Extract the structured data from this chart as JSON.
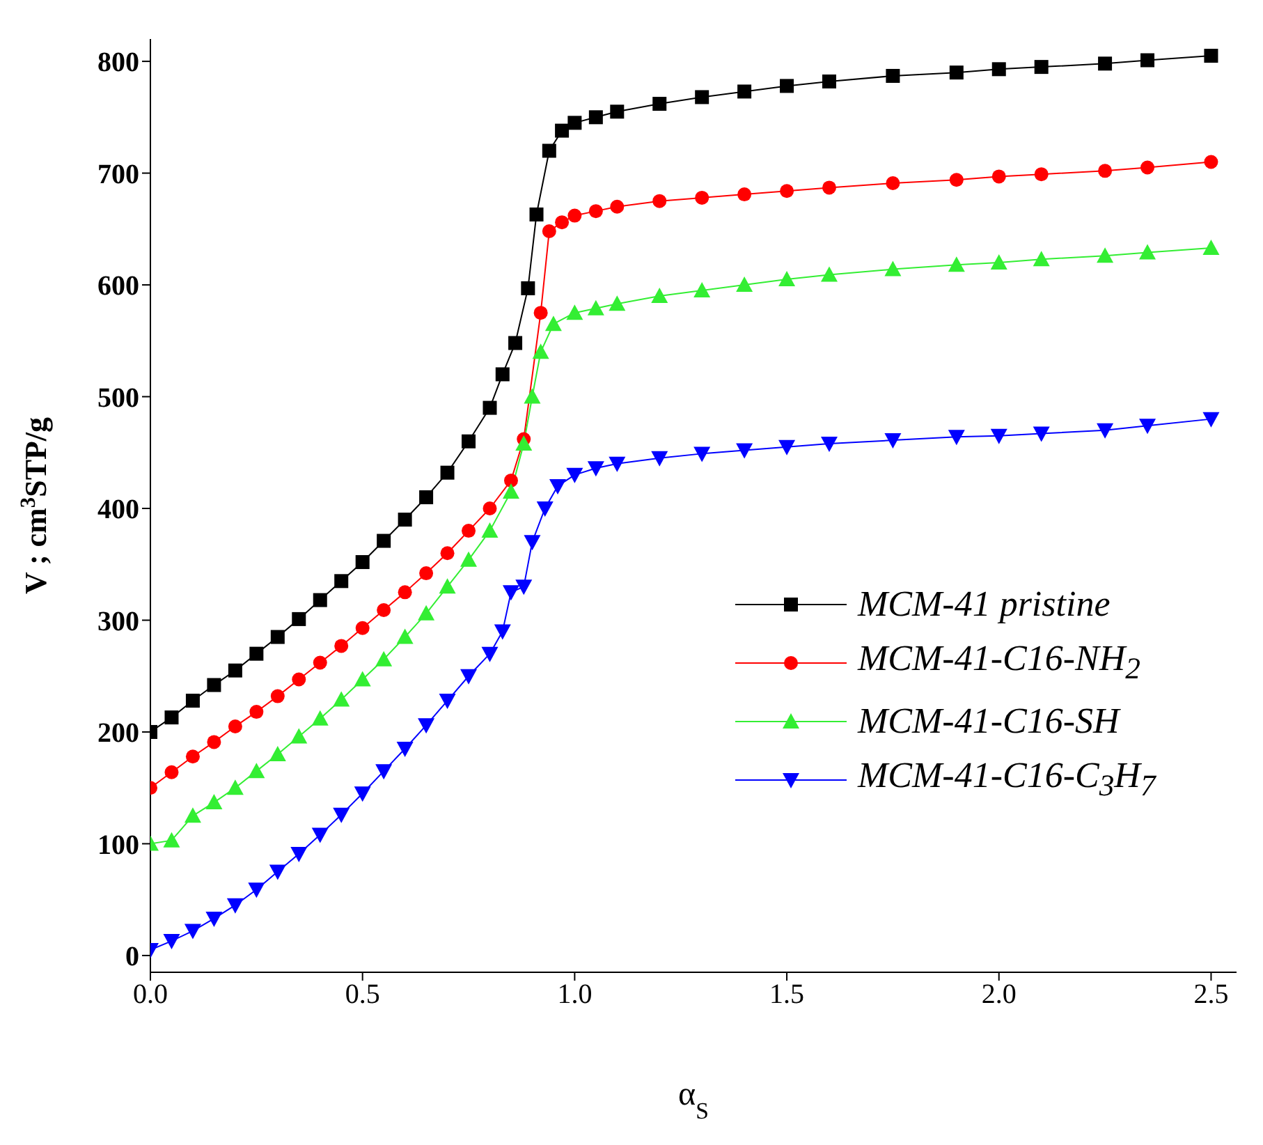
{
  "chart_data": {
    "type": "line",
    "xlabel": "α$_{S}$",
    "ylabel": "V ; cm$^{3}$STP/g",
    "xlim": [
      0,
      2.56
    ],
    "ylim": [
      -15,
      820
    ],
    "xticks": [
      {
        "value": 0,
        "label": "0.0"
      },
      {
        "value": 0.5,
        "label": "0.5"
      },
      {
        "value": 1,
        "label": "1.0"
      },
      {
        "value": 1.5,
        "label": "1.5"
      },
      {
        "value": 2,
        "label": "2.0"
      },
      {
        "value": 2.5,
        "label": "2.5"
      }
    ],
    "yticks": [
      0,
      100,
      200,
      300,
      400,
      500,
      600,
      700,
      800
    ],
    "legend": "right",
    "line_style": "solid",
    "series": [
      {
        "name": "MCM-41 pristine",
        "color": "#000000",
        "marker": "square",
        "x": [
          0,
          0.05,
          0.1,
          0.15,
          0.2,
          0.25,
          0.3,
          0.35,
          0.4,
          0.45,
          0.5,
          0.55,
          0.6,
          0.65,
          0.7,
          0.75,
          0.8,
          0.83,
          0.86,
          0.89,
          0.91,
          0.94,
          0.97,
          1.0,
          1.05,
          1.1,
          1.2,
          1.3,
          1.4,
          1.5,
          1.6,
          1.75,
          1.9,
          2.0,
          2.1,
          2.25,
          2.35,
          2.5
        ],
        "values": [
          200,
          213,
          228,
          242,
          255,
          270,
          285,
          301,
          318,
          335,
          352,
          371,
          390,
          410,
          432,
          460,
          490,
          520,
          548,
          597,
          663,
          720,
          738,
          745,
          750,
          755,
          762,
          768,
          773,
          778,
          782,
          787,
          790,
          793,
          795,
          798,
          801,
          805
        ]
      },
      {
        "name": "MCM-41-C16-NH$_{2}$",
        "color": "#ff0000",
        "marker": "circle",
        "x": [
          0,
          0.05,
          0.1,
          0.15,
          0.2,
          0.25,
          0.3,
          0.35,
          0.4,
          0.45,
          0.5,
          0.55,
          0.6,
          0.65,
          0.7,
          0.75,
          0.8,
          0.85,
          0.88,
          0.92,
          0.94,
          0.97,
          1.0,
          1.05,
          1.1,
          1.2,
          1.3,
          1.4,
          1.5,
          1.6,
          1.75,
          1.9,
          2.0,
          2.1,
          2.25,
          2.35,
          2.5
        ],
        "values": [
          150,
          164,
          178,
          191,
          205,
          218,
          232,
          247,
          262,
          277,
          293,
          309,
          325,
          342,
          360,
          380,
          400,
          425,
          462,
          575,
          648,
          656,
          662,
          666,
          670,
          675,
          678,
          681,
          684,
          687,
          691,
          694,
          697,
          699,
          702,
          705,
          710
        ]
      },
      {
        "name": "MCM-41-C16-SH",
        "color": "#33ee33",
        "marker": "triangle",
        "x": [
          0,
          0.05,
          0.1,
          0.15,
          0.2,
          0.25,
          0.3,
          0.35,
          0.4,
          0.45,
          0.5,
          0.55,
          0.6,
          0.65,
          0.7,
          0.75,
          0.8,
          0.85,
          0.88,
          0.9,
          0.92,
          0.95,
          1.0,
          1.05,
          1.1,
          1.2,
          1.3,
          1.4,
          1.5,
          1.6,
          1.75,
          1.9,
          2.0,
          2.1,
          2.25,
          2.35,
          2.5
        ],
        "values": [
          100,
          103,
          125,
          137,
          150,
          165,
          180,
          196,
          212,
          229,
          247,
          265,
          285,
          306,
          330,
          354,
          380,
          415,
          458,
          500,
          540,
          565,
          575,
          579,
          583,
          590,
          595,
          600,
          605,
          609,
          614,
          618,
          620,
          623,
          626,
          629,
          633
        ]
      },
      {
        "name": "MCM-41-C16-C$_{3}$H$_{7}$",
        "color": "#0000ff",
        "marker": "triangle-down",
        "x": [
          0,
          0.05,
          0.1,
          0.15,
          0.2,
          0.25,
          0.3,
          0.35,
          0.4,
          0.45,
          0.5,
          0.55,
          0.6,
          0.65,
          0.7,
          0.75,
          0.8,
          0.83,
          0.85,
          0.88,
          0.9,
          0.93,
          0.96,
          1.0,
          1.05,
          1.1,
          1.2,
          1.3,
          1.4,
          1.5,
          1.6,
          1.75,
          1.9,
          2.0,
          2.1,
          2.25,
          2.35,
          2.5
        ],
        "values": [
          5,
          13,
          22,
          33,
          45,
          59,
          75,
          91,
          108,
          126,
          145,
          165,
          185,
          206,
          228,
          250,
          270,
          290,
          325,
          330,
          370,
          400,
          420,
          430,
          436,
          440,
          445,
          449,
          452,
          455,
          458,
          461,
          464,
          465,
          467,
          470,
          474,
          480
        ]
      }
    ]
  }
}
